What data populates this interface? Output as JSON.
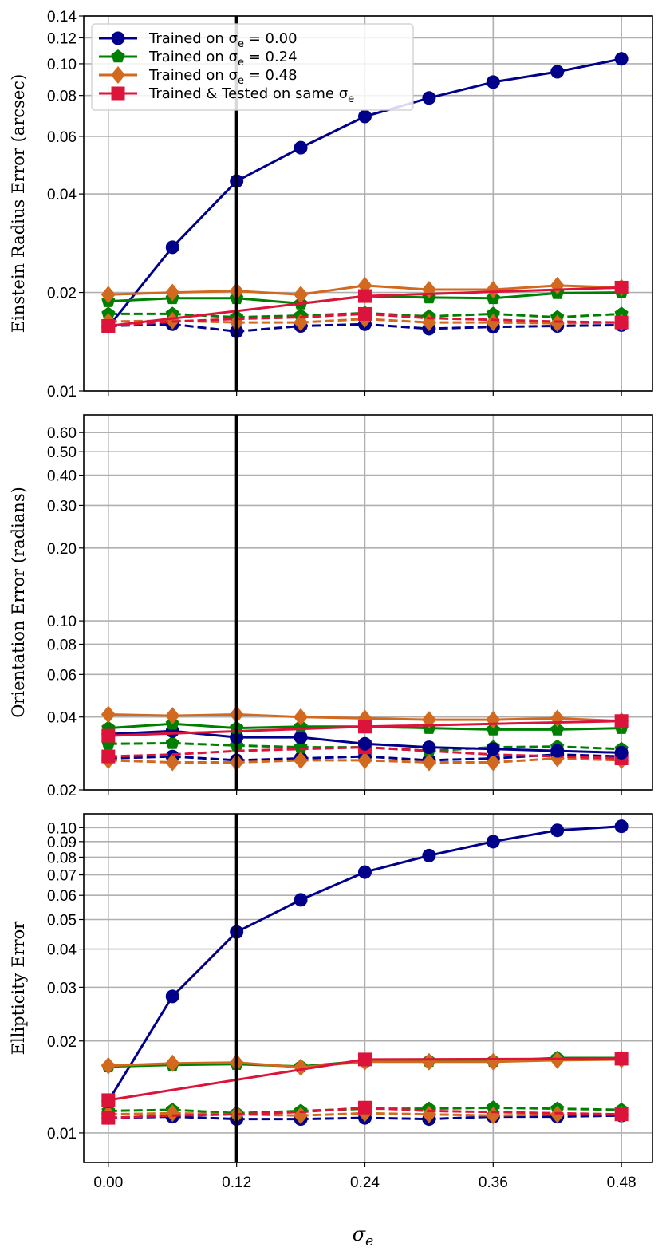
{
  "chart_data": {
    "type": "line",
    "xlabel": {
      "sym": "σ",
      "sub": "e"
    },
    "x": [
      0.0,
      0.06,
      0.12,
      0.18,
      0.24,
      0.3,
      0.36,
      0.42,
      0.48
    ],
    "xlim": [
      -0.023,
      0.509
    ],
    "xticks": [
      "0.00",
      "0.12",
      "0.24",
      "0.36",
      "0.48"
    ],
    "xtick_values": [
      0.0,
      0.12,
      0.24,
      0.36,
      0.48
    ],
    "vertical_line_at": 0.12,
    "grid": true,
    "yscale": "log",
    "legend": {
      "placement": "top-left",
      "entries": [
        {
          "text": "Trained on σ",
          "sub": "e",
          "tail": " = 0.00",
          "color": "#00008b",
          "marker": "circle"
        },
        {
          "text": "Trained on σ",
          "sub": "e",
          "tail": " = 0.24",
          "color": "#008000",
          "marker": "pentagon"
        },
        {
          "text": "Trained on σ",
          "sub": "e",
          "tail": " = 0.48",
          "color": "#d2691e",
          "marker": "diamond"
        },
        {
          "text": "Trained & Tested on same σ",
          "sub": "e",
          "tail": "",
          "color": "#dc143c",
          "marker": "square"
        }
      ]
    },
    "panels": [
      {
        "ylabel": "Einstein Radius Error (arcsec)",
        "ylim": [
          0.01,
          0.14
        ],
        "yticks": [
          "0.01",
          "0.02",
          "0.04",
          "0.06",
          "0.08",
          "0.10",
          "0.12",
          "0.14"
        ],
        "ytick_values": [
          0.01,
          0.02,
          0.04,
          0.06,
          0.08,
          0.1,
          0.12,
          0.14
        ],
        "series": [
          {
            "name": "Trained on σe=0.00 (dashed)",
            "color": "#00008b",
            "marker": "circle",
            "dashed": true,
            "y": [
              0.0158,
              0.016,
              0.0152,
              0.0158,
              0.016,
              0.0155,
              0.0157,
              0.0158,
              0.0159
            ]
          },
          {
            "name": "Trained on σe=0.24 (dashed)",
            "color": "#008000",
            "marker": "pentagon",
            "dashed": true,
            "y": [
              0.0172,
              0.0172,
              0.0168,
              0.017,
              0.0173,
              0.0169,
              0.0172,
              0.0168,
              0.0172
            ]
          },
          {
            "name": "Trained on σe=0.48 (dashed)",
            "color": "#d2691e",
            "marker": "diamond",
            "dashed": true,
            "y": [
              0.0163,
              0.0164,
              0.0162,
              0.0162,
              0.0166,
              0.0162,
              0.0162,
              0.0161,
              0.0162
            ]
          },
          {
            "name": "Trained & Tested on same σe (dashed)",
            "color": "#dc143c",
            "marker": "square",
            "dashed": true,
            "marker_every": 4,
            "y": [
              0.0158,
              0.0163,
              0.0166,
              0.0168,
              0.0172,
              0.0167,
              0.0165,
              0.0163,
              0.0162
            ]
          },
          {
            "name": "Trained on σe=0.00",
            "color": "#00008b",
            "marker": "circle",
            "dashed": false,
            "y": [
              0.0157,
              0.0275,
              0.0438,
              0.0554,
              0.069,
              0.0786,
              0.0879,
              0.0945,
              0.1035
            ]
          },
          {
            "name": "Trained on σe=0.24",
            "color": "#008000",
            "marker": "pentagon",
            "dashed": false,
            "y": [
              0.0188,
              0.0192,
              0.0192,
              0.0185,
              0.0195,
              0.0193,
              0.0192,
              0.0199,
              0.02
            ]
          },
          {
            "name": "Trained on σe=0.48",
            "color": "#d2691e",
            "marker": "diamond",
            "dashed": false,
            "y": [
              0.0197,
              0.02,
              0.0202,
              0.0197,
              0.021,
              0.0204,
              0.0204,
              0.021,
              0.0207
            ]
          },
          {
            "name": "Trained & Tested on same σe",
            "color": "#dc143c",
            "marker": "square",
            "dashed": false,
            "x": [
              0.0,
              0.24,
              0.48
            ],
            "y": [
              0.0158,
              0.0195,
              0.0207
            ]
          }
        ]
      },
      {
        "ylabel": "Orientation Error (radians)",
        "ylim": [
          0.02,
          0.71
        ],
        "yticks": [
          "0.02",
          "0.04",
          "0.06",
          "0.08",
          "0.10",
          "0.20",
          "0.30",
          "0.40",
          "0.50",
          "0.60"
        ],
        "ytick_values": [
          0.02,
          0.04,
          0.06,
          0.08,
          0.1,
          0.2,
          0.3,
          0.4,
          0.5,
          0.6
        ],
        "series": [
          {
            "name": "Trained on σe=0.00 (dashed)",
            "color": "#00008b",
            "marker": "circle",
            "dashed": true,
            "y": [
              0.027,
              0.0275,
              0.0265,
              0.027,
              0.0275,
              0.0265,
              0.027,
              0.028,
              0.0275
            ]
          },
          {
            "name": "Trained on σe=0.24 (dashed)",
            "color": "#008000",
            "marker": "pentagon",
            "dashed": true,
            "y": [
              0.031,
              0.0312,
              0.0305,
              0.03,
              0.03,
              0.029,
              0.03,
              0.0302,
              0.0295
            ]
          },
          {
            "name": "Trained on σe=0.48 (dashed)",
            "color": "#d2691e",
            "marker": "diamond",
            "dashed": true,
            "y": [
              0.0265,
              0.026,
              0.026,
              0.0265,
              0.0265,
              0.026,
              0.026,
              0.027,
              0.0265
            ]
          },
          {
            "name": "Trained & Tested on same σe (dashed)",
            "color": "#dc143c",
            "marker": "square",
            "dashed": true,
            "marker_every": 4,
            "y": [
              0.0275,
              0.028,
              0.029,
              0.0295,
              0.03,
              0.029,
              0.028,
              0.0275,
              0.027
            ]
          },
          {
            "name": "Trained on σe=0.00",
            "color": "#00008b",
            "marker": "circle",
            "dashed": false,
            "y": [
              0.034,
              0.035,
              0.033,
              0.033,
              0.031,
              0.03,
              0.0295,
              0.029,
              0.0285
            ]
          },
          {
            "name": "Trained on σe=0.24",
            "color": "#008000",
            "marker": "pentagon",
            "dashed": false,
            "y": [
              0.036,
              0.0375,
              0.036,
              0.0365,
              0.0365,
              0.036,
              0.0355,
              0.0355,
              0.036
            ]
          },
          {
            "name": "Trained on σe=0.48",
            "color": "#d2691e",
            "marker": "diamond",
            "dashed": false,
            "y": [
              0.041,
              0.0405,
              0.041,
              0.04,
              0.0395,
              0.039,
              0.039,
              0.0395,
              0.0385
            ]
          },
          {
            "name": "Trained & Tested on same σe",
            "color": "#dc143c",
            "marker": "square",
            "dashed": false,
            "x": [
              0.0,
              0.24,
              0.48
            ],
            "y": [
              0.0335,
              0.0365,
              0.0385
            ]
          }
        ]
      },
      {
        "ylabel": "Ellipticity Error",
        "ylim": [
          0.008,
          0.111
        ],
        "yticks": [
          "0.01",
          "0.02",
          "0.03",
          "0.04",
          "0.05",
          "0.06",
          "0.07",
          "0.08",
          "0.09",
          "0.10"
        ],
        "ytick_values": [
          0.01,
          0.02,
          0.03,
          0.04,
          0.05,
          0.06,
          0.07,
          0.08,
          0.09,
          0.1
        ],
        "series": [
          {
            "name": "Trained on σe=0.00 (dashed)",
            "color": "#00008b",
            "marker": "circle",
            "dashed": true,
            "y": [
              0.0112,
              0.0113,
              0.0111,
              0.0111,
              0.0112,
              0.0111,
              0.0113,
              0.0113,
              0.0114
            ]
          },
          {
            "name": "Trained on σe=0.24 (dashed)",
            "color": "#008000",
            "marker": "pentagon",
            "dashed": true,
            "y": [
              0.0118,
              0.0119,
              0.0116,
              0.0118,
              0.012,
              0.012,
              0.0121,
              0.012,
              0.0119
            ]
          },
          {
            "name": "Trained on σe=0.48 (dashed)",
            "color": "#d2691e",
            "marker": "diamond",
            "dashed": true,
            "y": [
              0.0115,
              0.0116,
              0.0115,
              0.0114,
              0.0116,
              0.0115,
              0.0114,
              0.0115,
              0.0115
            ]
          },
          {
            "name": "Trained & Tested on same σe (dashed)",
            "color": "#dc143c",
            "marker": "square",
            "dashed": true,
            "marker_every": 4,
            "y": [
              0.0112,
              0.0114,
              0.0115,
              0.0117,
              0.0121,
              0.0118,
              0.0117,
              0.0116,
              0.0115
            ]
          },
          {
            "name": "Trained on σe=0.00",
            "color": "#00008b",
            "marker": "circle",
            "dashed": false,
            "y": [
              0.0127,
              0.028,
              0.0455,
              0.058,
              0.0715,
              0.081,
              0.09,
              0.098,
              0.101
            ]
          },
          {
            "name": "Trained on σe=0.24",
            "color": "#008000",
            "marker": "pentagon",
            "dashed": false,
            "y": [
              0.0165,
              0.0167,
              0.0168,
              0.0165,
              0.0172,
              0.0172,
              0.0172,
              0.0176,
              0.0176
            ]
          },
          {
            "name": "Trained on σe=0.48",
            "color": "#d2691e",
            "marker": "diamond",
            "dashed": false,
            "y": [
              0.0166,
              0.0169,
              0.017,
              0.0164,
              0.0171,
              0.0171,
              0.0171,
              0.0173,
              0.0174
            ]
          },
          {
            "name": "Trained & Tested on same σe",
            "color": "#dc143c",
            "marker": "square",
            "dashed": false,
            "x": [
              0.0,
              0.24,
              0.48
            ],
            "y": [
              0.0128,
              0.0174,
              0.0175
            ]
          }
        ]
      }
    ]
  }
}
